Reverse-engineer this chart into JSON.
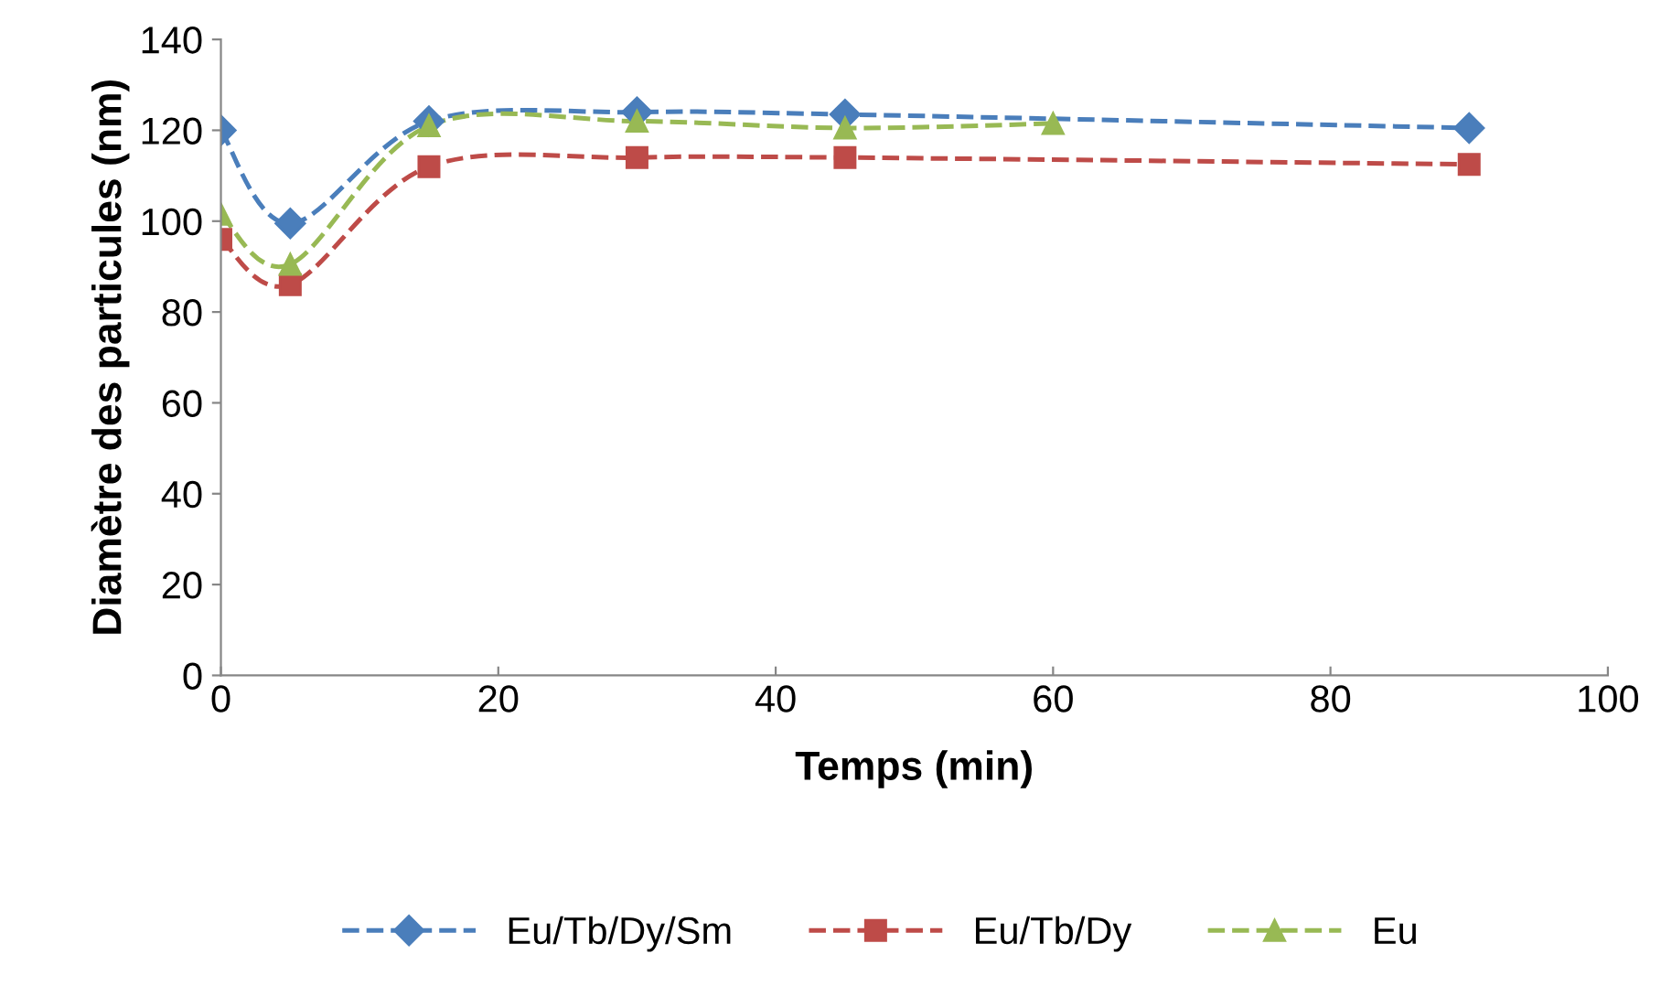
{
  "chart_data": {
    "type": "line",
    "xlabel": "Temps (min)",
    "ylabel": "Diamètre des particules (nm)",
    "xlim": [
      0,
      100
    ],
    "xticks": [
      0,
      20,
      40,
      60,
      80,
      100
    ],
    "ylim": [
      0,
      140
    ],
    "yticks": [
      0,
      20,
      40,
      60,
      80,
      100,
      120,
      140
    ],
    "grid": false,
    "legend": "bottom",
    "line_style": "dashed",
    "series": [
      {
        "name": "Eu/Tb/Dy/Sm",
        "color": "#4a7ebb",
        "marker": "diamond",
        "x": [
          0,
          5,
          15,
          30,
          45,
          90
        ],
        "values": [
          120,
          99.5,
          122,
          124,
          123.5,
          120.5
        ]
      },
      {
        "name": "Eu/Tb/Dy",
        "color": "#be4b48",
        "marker": "square",
        "x": [
          0,
          5,
          15,
          30,
          45,
          90
        ],
        "values": [
          96,
          86,
          112,
          114,
          114,
          112.5
        ]
      },
      {
        "name": "Eu",
        "color": "#98b954",
        "marker": "triangle",
        "x": [
          0,
          5,
          15,
          30,
          45,
          60
        ],
        "values": [
          101.5,
          90.5,
          121,
          122,
          120.5,
          121.5
        ]
      }
    ]
  }
}
